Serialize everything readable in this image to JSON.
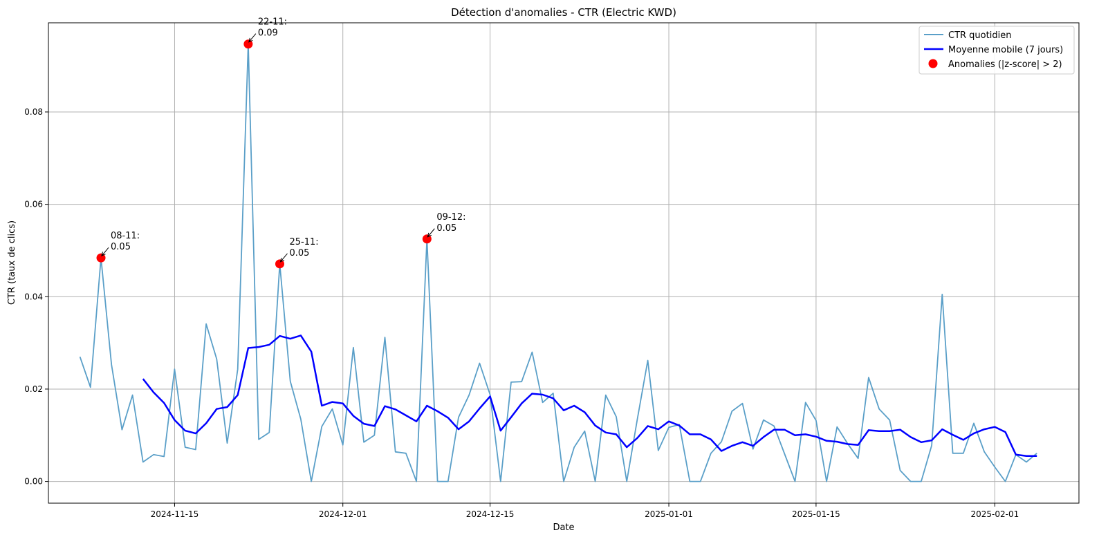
{
  "chart_data": {
    "type": "line",
    "title": "Détection d'anomalies - CTR (Electric KWD)",
    "xlabel": "Date",
    "ylabel": "CTR (taux de clics)",
    "x_axis_type": "date",
    "xlim": [
      "2024-11-03",
      "2025-02-09"
    ],
    "ylim": [
      -0.0047,
      0.0993
    ],
    "x_ticks": [
      "2024-11-15",
      "2024-12-01",
      "2024-12-15",
      "2025-01-01",
      "2025-01-15",
      "2025-02-01"
    ],
    "y_ticks": [
      0.0,
      0.02,
      0.04,
      0.06,
      0.08
    ],
    "y_tick_labels": [
      "0.00",
      "0.02",
      "0.04",
      "0.06",
      "0.08"
    ],
    "grid": true,
    "legend_position": "top-right",
    "colors": {
      "daily": "#5a9fc8",
      "rolling": "#0000ff",
      "anomaly": "#ff0000"
    },
    "series": [
      {
        "name": "CTR quotidien",
        "style": "line",
        "x": [
          "2024-11-06",
          "2024-11-07",
          "2024-11-08",
          "2024-11-09",
          "2024-11-10",
          "2024-11-11",
          "2024-11-12",
          "2024-11-13",
          "2024-11-14",
          "2024-11-15",
          "2024-11-16",
          "2024-11-17",
          "2024-11-18",
          "2024-11-19",
          "2024-11-20",
          "2024-11-21",
          "2024-11-22",
          "2024-11-23",
          "2024-11-24",
          "2024-11-25",
          "2024-11-26",
          "2024-11-27",
          "2024-11-28",
          "2024-11-29",
          "2024-11-30",
          "2024-12-01",
          "2024-12-02",
          "2024-12-03",
          "2024-12-04",
          "2024-12-05",
          "2024-12-06",
          "2024-12-07",
          "2024-12-08",
          "2024-12-09",
          "2024-12-10",
          "2024-12-11",
          "2024-12-12",
          "2024-12-13",
          "2024-12-14",
          "2024-12-15",
          "2024-12-16",
          "2024-12-17",
          "2024-12-18",
          "2024-12-19",
          "2024-12-20",
          "2024-12-21",
          "2024-12-22",
          "2024-12-23",
          "2024-12-24",
          "2024-12-25",
          "2024-12-26",
          "2024-12-27",
          "2024-12-28",
          "2024-12-29",
          "2024-12-30",
          "2024-12-31",
          "2025-01-01",
          "2025-01-02",
          "2025-01-03",
          "2025-01-04",
          "2025-01-05",
          "2025-01-06",
          "2025-01-07",
          "2025-01-08",
          "2025-01-09",
          "2025-01-10",
          "2025-01-11",
          "2025-01-12",
          "2025-01-13",
          "2025-01-14",
          "2025-01-15",
          "2025-01-16",
          "2025-01-17",
          "2025-01-18",
          "2025-01-19",
          "2025-01-20",
          "2025-01-21",
          "2025-01-22",
          "2025-01-23",
          "2025-01-24",
          "2025-01-25",
          "2025-01-26",
          "2025-01-27",
          "2025-01-28",
          "2025-01-29",
          "2025-01-30",
          "2025-01-31",
          "2025-02-01",
          "2025-02-02",
          "2025-02-03",
          "2025-02-04",
          "2025-02-05"
        ],
        "values": [
          0.027,
          0.0204,
          0.0484,
          0.0253,
          0.0112,
          0.0187,
          0.0042,
          0.0058,
          0.0054,
          0.0243,
          0.0074,
          0.0069,
          0.0341,
          0.0265,
          0.0083,
          0.0243,
          0.0947,
          0.0091,
          0.0106,
          0.0471,
          0.0217,
          0.0135,
          0.0,
          0.0119,
          0.0157,
          0.0079,
          0.029,
          0.0085,
          0.01,
          0.0312,
          0.0064,
          0.0061,
          0.0,
          0.0525,
          0.0,
          0.0,
          0.0139,
          0.0187,
          0.0256,
          0.0188,
          0.0,
          0.0215,
          0.0216,
          0.028,
          0.0171,
          0.0191,
          0.0,
          0.0074,
          0.0109,
          0.0,
          0.0187,
          0.014,
          0.0,
          0.0134,
          0.0262,
          0.0067,
          0.0117,
          0.0123,
          0.0,
          0.0,
          0.0061,
          0.0086,
          0.0152,
          0.0169,
          0.007,
          0.0133,
          0.012,
          0.006,
          0.0,
          0.0171,
          0.0132,
          0.0,
          0.0118,
          0.0082,
          0.005,
          0.0225,
          0.0157,
          0.0133,
          0.0024,
          0.0,
          0.0,
          0.0078,
          0.0405,
          0.0061,
          0.0061,
          0.0126,
          0.0064,
          0.0031,
          0.0,
          0.0058,
          0.0042,
          0.0061
        ]
      },
      {
        "name": "Moyenne mobile (7 jours)",
        "style": "line",
        "x": [
          "2024-11-12",
          "2024-11-13",
          "2024-11-14",
          "2024-11-15",
          "2024-11-16",
          "2024-11-17",
          "2024-11-18",
          "2024-11-19",
          "2024-11-20",
          "2024-11-21",
          "2024-11-22",
          "2024-11-23",
          "2024-11-24",
          "2024-11-25",
          "2024-11-26",
          "2024-11-27",
          "2024-11-28",
          "2024-11-29",
          "2024-11-30",
          "2024-12-01",
          "2024-12-02",
          "2024-12-03",
          "2024-12-04",
          "2024-12-05",
          "2024-12-06",
          "2024-12-07",
          "2024-12-08",
          "2024-12-09",
          "2024-12-10",
          "2024-12-11",
          "2024-12-12",
          "2024-12-13",
          "2024-12-14",
          "2024-12-15",
          "2024-12-16",
          "2024-12-17",
          "2024-12-18",
          "2024-12-19",
          "2024-12-20",
          "2024-12-21",
          "2024-12-22",
          "2024-12-23",
          "2024-12-24",
          "2024-12-25",
          "2024-12-26",
          "2024-12-27",
          "2024-12-28",
          "2024-12-29",
          "2024-12-30",
          "2024-12-31",
          "2025-01-01",
          "2025-01-02",
          "2025-01-03",
          "2025-01-04",
          "2025-01-05",
          "2025-01-06",
          "2025-01-07",
          "2025-01-08",
          "2025-01-09",
          "2025-01-10",
          "2025-01-11",
          "2025-01-12",
          "2025-01-13",
          "2025-01-14",
          "2025-01-15",
          "2025-01-16",
          "2025-01-17",
          "2025-01-18",
          "2025-01-19",
          "2025-01-20",
          "2025-01-21",
          "2025-01-22",
          "2025-01-23",
          "2025-01-24",
          "2025-01-25",
          "2025-01-26",
          "2025-01-27",
          "2025-01-28",
          "2025-01-29",
          "2025-01-30",
          "2025-01-31",
          "2025-02-01",
          "2025-02-02",
          "2025-02-03",
          "2025-02-04",
          "2025-02-05"
        ],
        "values": [
          0.0222,
          0.0193,
          0.017,
          0.0133,
          0.011,
          0.0104,
          0.0126,
          0.0157,
          0.0161,
          0.0187,
          0.0289,
          0.0291,
          0.0296,
          0.0315,
          0.0309,
          0.0316,
          0.0281,
          0.0164,
          0.0172,
          0.0169,
          0.0142,
          0.0125,
          0.012,
          0.0163,
          0.0156,
          0.0143,
          0.013,
          0.0164,
          0.0152,
          0.0138,
          0.0113,
          0.013,
          0.0158,
          0.0184,
          0.011,
          0.0139,
          0.0169,
          0.019,
          0.0188,
          0.018,
          0.0154,
          0.0164,
          0.015,
          0.0121,
          0.0106,
          0.0102,
          0.0074,
          0.0094,
          0.012,
          0.0113,
          0.013,
          0.0121,
          0.0102,
          0.0102,
          0.0091,
          0.0066,
          0.0077,
          0.0085,
          0.0077,
          0.0096,
          0.0112,
          0.0112,
          0.01,
          0.0102,
          0.0097,
          0.0088,
          0.0086,
          0.0081,
          0.0079,
          0.0111,
          0.0109,
          0.0109,
          0.0112,
          0.0096,
          0.0085,
          0.0089,
          0.0113,
          0.0101,
          0.009,
          0.0104,
          0.0113,
          0.0118,
          0.0107,
          0.0058,
          0.0055,
          0.0055
        ]
      },
      {
        "name": "Anomalies (|z-score| > 2)",
        "style": "scatter",
        "x": [
          "2024-11-08",
          "2024-11-22",
          "2024-11-25",
          "2024-12-09"
        ],
        "values": [
          0.0484,
          0.0947,
          0.0471,
          0.0525
        ]
      }
    ],
    "annotations": [
      {
        "x": "2024-11-08",
        "y": 0.0484,
        "label_line1": "08-11:",
        "label_line2": "0.05"
      },
      {
        "x": "2024-11-22",
        "y": 0.0947,
        "label_line1": "22-11:",
        "label_line2": "0.09"
      },
      {
        "x": "2024-11-25",
        "y": 0.0471,
        "label_line1": "25-11:",
        "label_line2": "0.05"
      },
      {
        "x": "2024-12-09",
        "y": 0.0525,
        "label_line1": "09-12:",
        "label_line2": "0.05"
      }
    ]
  }
}
